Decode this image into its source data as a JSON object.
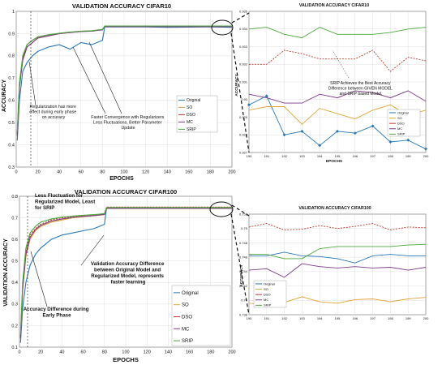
{
  "colors": {
    "original": "#2a78b8",
    "so": "#e2a43a",
    "dso": "#c0392b",
    "mc": "#7d3a8a",
    "srip": "#4ca83c",
    "axis": "#333333",
    "grid": "#d8d8d8"
  },
  "chart_data": [
    {
      "id": "cifar10-main",
      "type": "line",
      "title": "VALIDATION ACCURACY CIFAR10",
      "xlabel": "EPOCHS",
      "ylabel": "ACCURACY",
      "xlim": [
        0,
        200
      ],
      "ylim": [
        0.3,
        1.0
      ],
      "xticks": [
        "0",
        "20",
        "40",
        "60",
        "80",
        "100",
        "120",
        "140",
        "160",
        "180",
        "200"
      ],
      "yticks": [
        "0.3",
        "0.4",
        "0.5",
        "0.6",
        "0.7",
        "0.8",
        "0.9",
        "1"
      ],
      "grid": true,
      "legend": "center-right",
      "annotations": [
        {
          "text": [
            "Faster Convergence with Regularizers",
            "Less Fluctuations, Better Parameter",
            "Update"
          ]
        },
        {
          "text": [
            "Regularization has more",
            "effect during early phase",
            "on accuracy"
          ]
        }
      ],
      "x": [
        1,
        3,
        6,
        10,
        15,
        20,
        30,
        40,
        50,
        60,
        70,
        75,
        80,
        82,
        100,
        120,
        140,
        160,
        180,
        200
      ],
      "series": [
        {
          "name": "Original",
          "key": "original",
          "values": [
            0.42,
            0.6,
            0.73,
            0.77,
            0.8,
            0.82,
            0.84,
            0.85,
            0.83,
            0.86,
            0.85,
            0.86,
            0.87,
            0.93,
            0.93,
            0.93,
            0.928,
            0.929,
            0.93,
            0.928
          ]
        },
        {
          "name": "SO",
          "key": "so",
          "values": [
            0.45,
            0.66,
            0.78,
            0.84,
            0.86,
            0.88,
            0.89,
            0.9,
            0.905,
            0.91,
            0.912,
            0.915,
            0.918,
            0.932,
            0.932,
            0.932,
            0.932,
            0.932,
            0.932,
            0.932
          ]
        },
        {
          "name": "DSO",
          "key": "dso",
          "values": [
            0.45,
            0.67,
            0.79,
            0.85,
            0.87,
            0.885,
            0.895,
            0.9,
            0.906,
            0.91,
            0.912,
            0.915,
            0.918,
            0.932,
            0.932,
            0.932,
            0.932,
            0.932,
            0.932,
            0.932
          ]
        },
        {
          "name": "MC",
          "key": "mc",
          "values": [
            0.44,
            0.66,
            0.78,
            0.84,
            0.86,
            0.88,
            0.89,
            0.9,
            0.905,
            0.909,
            0.911,
            0.914,
            0.917,
            0.931,
            0.931,
            0.931,
            0.931,
            0.931,
            0.931,
            0.931
          ]
        },
        {
          "name": "SRIP",
          "key": "srip",
          "values": [
            0.46,
            0.68,
            0.8,
            0.85,
            0.87,
            0.885,
            0.895,
            0.902,
            0.907,
            0.911,
            0.913,
            0.916,
            0.919,
            0.934,
            0.934,
            0.934,
            0.934,
            0.934,
            0.934,
            0.934
          ]
        }
      ]
    },
    {
      "id": "cifar10-zoom",
      "type": "line",
      "title": "VALIDATION ACCURACY CIFAR10",
      "xlabel": "EPOCHS",
      "ylabel": "ACCURACY",
      "xlim": [
        190,
        200
      ],
      "ylim": [
        0.927,
        0.935
      ],
      "xticks": [
        "190",
        "191",
        "192",
        "193",
        "194",
        "195",
        "196",
        "197",
        "198",
        "199",
        "200"
      ],
      "yticks": [
        "0.927",
        "0.928",
        "0.929",
        "0.93",
        "0.931",
        "0.932",
        "0.933",
        "0.934",
        "0.935"
      ],
      "grid": true,
      "legend": "center-right",
      "annotations": [
        {
          "text": [
            "SRIP Achieves the Best Accuracy",
            "Difference between GIVEN MODEL",
            "and SRIP based Model."
          ]
        }
      ],
      "x": [
        190,
        191,
        192,
        193,
        194,
        195,
        196,
        197,
        198,
        199,
        200
      ],
      "series": [
        {
          "name": "Original",
          "key": "original",
          "values": [
            0.9297,
            0.9302,
            0.928,
            0.9282,
            0.9274,
            0.9282,
            0.9281,
            0.9285,
            0.9276,
            0.9277,
            0.9272
          ]
        },
        {
          "name": "SO",
          "key": "so",
          "values": [
            0.9294,
            0.9296,
            0.9296,
            0.9286,
            0.9295,
            0.9292,
            0.9289,
            0.9294,
            0.9297,
            0.9291,
            0.9294
          ]
        },
        {
          "name": "DSO",
          "key": "dso",
          "values": [
            0.932,
            0.932,
            0.9328,
            0.9326,
            0.9323,
            0.9323,
            0.9323,
            0.9328,
            0.9316,
            0.9324,
            0.9322
          ]
        },
        {
          "name": "MC",
          "key": "mc",
          "values": [
            0.9303,
            0.9301,
            0.9298,
            0.9298,
            0.9303,
            0.9301,
            0.9305,
            0.9304,
            0.9301,
            0.9305,
            0.9299
          ]
        },
        {
          "name": "SRIP",
          "key": "srip",
          "values": [
            0.934,
            0.9341,
            0.9337,
            0.9335,
            0.9341,
            0.9337,
            0.9337,
            0.9337,
            0.9338,
            0.934,
            0.9341
          ]
        }
      ]
    },
    {
      "id": "cifar100-main",
      "type": "line",
      "title": "VALIDATION ACCURACY CIFAR100",
      "xlabel": "EPOCHS",
      "ylabel": "VALIDATION ACCURACY",
      "xlim": [
        0,
        200
      ],
      "ylim": [
        0.1,
        0.8
      ],
      "xticks": [
        "0",
        "20",
        "40",
        "60",
        "80",
        "100",
        "120",
        "140",
        "160",
        "180",
        "200"
      ],
      "yticks": [
        "0.1",
        "0.2",
        "0.3",
        "0.4",
        "0.5",
        "0.6",
        "0.7",
        "0.8"
      ],
      "grid": true,
      "legend": "bottom-right",
      "annotations": [
        {
          "text": [
            "Less Fluctuation for",
            "Regularized Model, Least",
            "for SRIP"
          ]
        },
        {
          "text": [
            "Validation Accuracy Difference",
            "between Original Model and",
            "Regularized Model, represents",
            "faster learning"
          ]
        },
        {
          "text": [
            "Accuracy Difference during",
            "Early Phase"
          ]
        }
      ],
      "x": [
        1,
        3,
        6,
        10,
        15,
        20,
        30,
        40,
        50,
        60,
        70,
        75,
        80,
        82,
        100,
        120,
        140,
        160,
        180,
        200
      ],
      "series": [
        {
          "name": "Original",
          "key": "original",
          "values": [
            0.12,
            0.28,
            0.4,
            0.48,
            0.53,
            0.56,
            0.6,
            0.62,
            0.63,
            0.64,
            0.65,
            0.66,
            0.67,
            0.746,
            0.746,
            0.746,
            0.746,
            0.746,
            0.746,
            0.746
          ]
        },
        {
          "name": "SO",
          "key": "so",
          "values": [
            0.14,
            0.36,
            0.52,
            0.6,
            0.64,
            0.66,
            0.68,
            0.69,
            0.7,
            0.705,
            0.71,
            0.712,
            0.715,
            0.746,
            0.746,
            0.746,
            0.746,
            0.746,
            0.746,
            0.746
          ]
        },
        {
          "name": "DSO",
          "key": "dso",
          "values": [
            0.15,
            0.38,
            0.54,
            0.62,
            0.65,
            0.67,
            0.69,
            0.7,
            0.705,
            0.71,
            0.712,
            0.715,
            0.718,
            0.75,
            0.75,
            0.75,
            0.75,
            0.75,
            0.75,
            0.75
          ]
        },
        {
          "name": "MC",
          "key": "mc",
          "values": [
            0.14,
            0.37,
            0.53,
            0.61,
            0.645,
            0.665,
            0.685,
            0.695,
            0.702,
            0.707,
            0.71,
            0.713,
            0.716,
            0.744,
            0.744,
            0.744,
            0.744,
            0.744,
            0.744,
            0.744
          ]
        },
        {
          "name": "SRIP",
          "key": "srip",
          "values": [
            0.16,
            0.4,
            0.56,
            0.63,
            0.66,
            0.68,
            0.695,
            0.703,
            0.708,
            0.712,
            0.715,
            0.717,
            0.72,
            0.748,
            0.748,
            0.748,
            0.748,
            0.748,
            0.748,
            0.748
          ]
        }
      ]
    },
    {
      "id": "cifar100-zoom",
      "type": "line",
      "title": "VALIDATION ACCURACY CIFAR100",
      "xlabel": "EPOCHS",
      "ylabel": "ACCURACY",
      "xlim": [
        190,
        200
      ],
      "ylim": [
        0.738,
        0.752
      ],
      "xticks": [
        "190",
        "191",
        "192",
        "193",
        "194",
        "195",
        "196",
        "197",
        "198",
        "199",
        "200"
      ],
      "yticks": [
        "0.738",
        "0.74",
        "0.742",
        "0.744",
        "0.746",
        "0.748",
        "0.75",
        "0.752"
      ],
      "grid": true,
      "legend": "bottom-left",
      "annotations": [],
      "x": [
        190,
        191,
        192,
        193,
        194,
        195,
        196,
        197,
        198,
        199,
        200
      ],
      "series": [
        {
          "name": "Original",
          "key": "original",
          "values": [
            0.7462,
            0.7462,
            0.7467,
            0.7462,
            0.7461,
            0.7458,
            0.7452,
            0.7462,
            0.7464,
            0.7462,
            0.7462
          ]
        },
        {
          "name": "SO",
          "key": "so",
          "values": [
            0.7396,
            0.7394,
            0.7397,
            0.7405,
            0.7398,
            0.7396,
            0.7401,
            0.7402,
            0.7398,
            0.7402,
            0.7404
          ]
        },
        {
          "name": "DSO",
          "key": "dso",
          "values": [
            0.7502,
            0.7507,
            0.7498,
            0.7499,
            0.7504,
            0.75,
            0.7503,
            0.7507,
            0.7498,
            0.7502,
            0.7501
          ]
        },
        {
          "name": "MC",
          "key": "mc",
          "values": [
            0.7442,
            0.7444,
            0.7432,
            0.7451,
            0.7447,
            0.7445,
            0.7447,
            0.7445,
            0.7446,
            0.7442,
            0.7446
          ]
        },
        {
          "name": "SRIP",
          "key": "srip",
          "values": [
            0.7464,
            0.7464,
            0.7458,
            0.7458,
            0.7472,
            0.7475,
            0.7475,
            0.7475,
            0.7475,
            0.7477,
            0.7478
          ]
        }
      ]
    }
  ]
}
